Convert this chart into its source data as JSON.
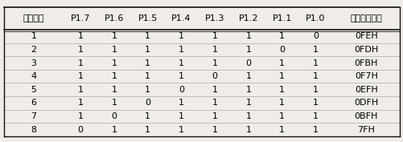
{
  "headers": [
    "状态序号",
    "P1.7",
    "P1.6",
    "P1.5",
    "P1.4",
    "P1.3",
    "P1.2",
    "P1.1",
    "P1.0",
    "十六进制状态"
  ],
  "rows": [
    [
      "1",
      "1",
      "1",
      "1",
      "1",
      "1",
      "1",
      "1",
      "0",
      "0FEH"
    ],
    [
      "2",
      "1",
      "1",
      "1",
      "1",
      "1",
      "1",
      "0",
      "1",
      "0FDH"
    ],
    [
      "3",
      "1",
      "1",
      "1",
      "1",
      "1",
      "0",
      "1",
      "1",
      "0FBH"
    ],
    [
      "4",
      "1",
      "1",
      "1",
      "1",
      "0",
      "1",
      "1",
      "1",
      "0F7H"
    ],
    [
      "5",
      "1",
      "1",
      "1",
      "0",
      "1",
      "1",
      "1",
      "1",
      "0EFH"
    ],
    [
      "6",
      "1",
      "1",
      "0",
      "1",
      "1",
      "1",
      "1",
      "1",
      "0DFH"
    ],
    [
      "7",
      "1",
      "0",
      "1",
      "1",
      "1",
      "1",
      "1",
      "1",
      "0BFH"
    ],
    [
      "8",
      "0",
      "1",
      "1",
      "1",
      "1",
      "1",
      "1",
      "1",
      "7FH"
    ]
  ],
  "col_widths_norm": [
    1.6,
    0.9,
    0.9,
    0.9,
    0.9,
    0.9,
    0.9,
    0.9,
    0.9,
    1.8
  ],
  "bg_color": "#f0ede8",
  "line_color": "#333333",
  "header_line_color": "#111111",
  "fontsize": 8.0,
  "fig_width": 5.02,
  "fig_height": 1.77,
  "dpi": 100
}
